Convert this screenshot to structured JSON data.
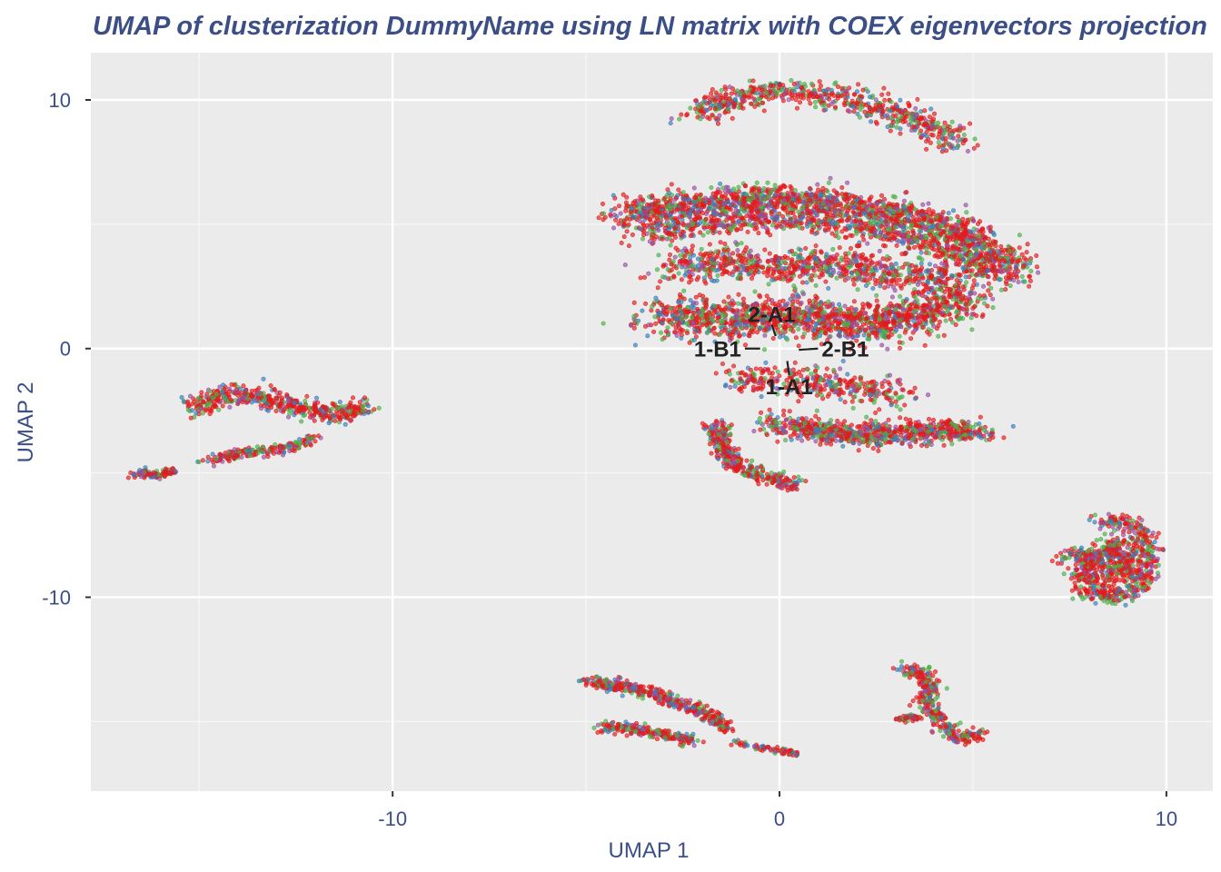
{
  "chart_data": {
    "type": "scatter",
    "title": "UMAP of clusterization DummyName using LN matrix with COEX eigenvectors projection",
    "xlabel": "UMAP 1",
    "ylabel": "UMAP 2",
    "xlim": [
      -17.8,
      11.2
    ],
    "ylim": [
      -17.8,
      11.9
    ],
    "x_ticks": [
      -10,
      0,
      10
    ],
    "y_ticks": [
      10,
      0,
      -10
    ],
    "x_tick_labels": [
      "-10",
      "0",
      "10"
    ],
    "y_tick_labels": [
      "10",
      "0",
      "-10"
    ],
    "grid": true,
    "legend": "none",
    "series_colors": [
      "#e41a1c",
      "#4daf4a",
      "#377eb8",
      "#984ea3"
    ],
    "series_weights": [
      0.55,
      0.2,
      0.13,
      0.12
    ],
    "clusters": [
      {
        "name": "top-arc",
        "points": [
          [
            -2.1,
            9.3
          ],
          [
            -1.5,
            9.9
          ],
          [
            -0.5,
            10.3
          ],
          [
            0.6,
            10.3
          ],
          [
            1.8,
            10.0
          ],
          [
            2.9,
            9.6
          ],
          [
            3.8,
            9.0
          ],
          [
            4.5,
            8.2
          ]
        ],
        "spread": 0.45,
        "count": 650
      },
      {
        "name": "upper-band",
        "points": [
          [
            -4.0,
            5.2
          ],
          [
            -3.0,
            5.6
          ],
          [
            -1.5,
            5.9
          ],
          [
            0.0,
            6.0
          ],
          [
            1.5,
            5.8
          ],
          [
            3.0,
            5.4
          ],
          [
            4.5,
            4.7
          ],
          [
            5.6,
            3.8
          ],
          [
            6.1,
            3.0
          ]
        ],
        "spread": 0.55,
        "count": 1700
      },
      {
        "name": "upper-band-inner",
        "points": [
          [
            -3.5,
            4.6
          ],
          [
            -2.0,
            5.0
          ],
          [
            0.0,
            5.2
          ],
          [
            2.0,
            4.9
          ],
          [
            4.0,
            4.2
          ],
          [
            5.4,
            3.2
          ]
        ],
        "spread": 0.45,
        "count": 700
      },
      {
        "name": "middle-mass",
        "points": [
          [
            -3.0,
            1.2
          ],
          [
            -2.0,
            1.4
          ],
          [
            -1.0,
            1.1
          ],
          [
            0.0,
            1.3
          ],
          [
            1.0,
            1.2
          ],
          [
            2.0,
            1.0
          ],
          [
            3.0,
            1.2
          ],
          [
            4.0,
            1.6
          ],
          [
            4.8,
            2.2
          ]
        ],
        "spread": 0.7,
        "count": 1500
      },
      {
        "name": "middle-upper",
        "points": [
          [
            -2.8,
            3.2
          ],
          [
            -1.5,
            3.5
          ],
          [
            0.0,
            3.3
          ],
          [
            1.5,
            3.4
          ],
          [
            3.0,
            3.0
          ],
          [
            4.5,
            2.8
          ]
        ],
        "spread": 0.6,
        "count": 800
      },
      {
        "name": "middle-lower",
        "points": [
          [
            -1.0,
            -1.2
          ],
          [
            0.5,
            -1.3
          ],
          [
            2.0,
            -1.5
          ],
          [
            3.0,
            -2.0
          ]
        ],
        "spread": 0.55,
        "count": 350
      },
      {
        "name": "lower-band",
        "points": [
          [
            -0.3,
            -3.0
          ],
          [
            1.0,
            -3.3
          ],
          [
            2.5,
            -3.5
          ],
          [
            4.0,
            -3.3
          ],
          [
            5.2,
            -3.3
          ]
        ],
        "spread": 0.4,
        "count": 800
      },
      {
        "name": "lower-hook",
        "points": [
          [
            -1.6,
            -3.0
          ],
          [
            -1.5,
            -4.0
          ],
          [
            -1.0,
            -4.8
          ],
          [
            -0.3,
            -5.2
          ],
          [
            0.5,
            -5.5
          ]
        ],
        "spread": 0.25,
        "count": 350
      },
      {
        "name": "left-blob",
        "points": [
          [
            -15.1,
            -2.4
          ],
          [
            -14.5,
            -1.9
          ],
          [
            -13.5,
            -1.9
          ],
          [
            -12.6,
            -2.3
          ],
          [
            -11.5,
            -2.6
          ],
          [
            -10.7,
            -2.4
          ]
        ],
        "spread": 0.35,
        "count": 500
      },
      {
        "name": "left-lower",
        "points": [
          [
            -14.8,
            -4.6
          ],
          [
            -14.0,
            -4.2
          ],
          [
            -13.0,
            -4.1
          ],
          [
            -12.0,
            -3.6
          ]
        ],
        "spread": 0.2,
        "count": 200
      },
      {
        "name": "left-tail",
        "points": [
          [
            -16.7,
            -5.0
          ],
          [
            -16.0,
            -5.1
          ],
          [
            -15.6,
            -4.9
          ]
        ],
        "spread": 0.15,
        "count": 110
      },
      {
        "name": "right-ring",
        "points": [
          [
            8.3,
            -7.0
          ],
          [
            8.8,
            -6.9
          ],
          [
            9.3,
            -7.5
          ],
          [
            9.5,
            -8.3
          ],
          [
            9.4,
            -9.2
          ],
          [
            9.1,
            -9.8
          ],
          [
            8.5,
            -10.0
          ],
          [
            8.0,
            -9.7
          ],
          [
            8.1,
            -8.8
          ],
          [
            8.4,
            -8.0
          ]
        ],
        "spread": 0.3,
        "count": 550
      },
      {
        "name": "right-ring-inner",
        "points": [
          [
            8.6,
            -7.8
          ],
          [
            8.9,
            -8.5
          ],
          [
            8.7,
            -9.2
          ]
        ],
        "spread": 0.3,
        "count": 200
      },
      {
        "name": "right-tail",
        "points": [
          [
            7.3,
            -8.6
          ],
          [
            7.7,
            -8.1
          ],
          [
            8.1,
            -8.6
          ],
          [
            7.6,
            -9.2
          ]
        ],
        "spread": 0.2,
        "count": 100
      },
      {
        "name": "bottom-left-top",
        "points": [
          [
            -5.0,
            -13.4
          ],
          [
            -4.0,
            -13.6
          ],
          [
            -3.0,
            -14.0
          ],
          [
            -2.0,
            -14.6
          ],
          [
            -1.3,
            -15.3
          ]
        ],
        "spread": 0.2,
        "count": 400
      },
      {
        "name": "bottom-left-lower",
        "points": [
          [
            -4.6,
            -15.2
          ],
          [
            -3.6,
            -15.3
          ],
          [
            -2.8,
            -15.6
          ],
          [
            -2.2,
            -15.8
          ]
        ],
        "spread": 0.2,
        "count": 200
      },
      {
        "name": "bottom-left-tail",
        "points": [
          [
            -1.2,
            -15.8
          ],
          [
            -0.3,
            -16.1
          ],
          [
            0.5,
            -16.3
          ]
        ],
        "spread": 0.1,
        "count": 70
      },
      {
        "name": "bottom-right",
        "points": [
          [
            3.2,
            -13.0
          ],
          [
            3.6,
            -12.9
          ],
          [
            3.9,
            -13.6
          ],
          [
            3.8,
            -14.3
          ],
          [
            4.2,
            -15.1
          ],
          [
            4.7,
            -15.8
          ],
          [
            5.2,
            -15.4
          ]
        ],
        "spread": 0.22,
        "count": 330
      },
      {
        "name": "bottom-right-arm",
        "points": [
          [
            3.1,
            -14.9
          ],
          [
            3.6,
            -14.8
          ]
        ],
        "spread": 0.12,
        "count": 50
      }
    ],
    "annotations": [
      {
        "label": "2-A1",
        "x": -0.2,
        "y": 1.4,
        "line_to": [
          -0.1,
          0.5
        ]
      },
      {
        "label": "1-B1",
        "x": -1.6,
        "y": 0.0,
        "line_to": [
          -0.5,
          0.0
        ]
      },
      {
        "label": "2-B1",
        "x": 1.7,
        "y": 0.0,
        "line_to": [
          0.5,
          -0.05
        ]
      },
      {
        "label": "1-A1",
        "x": 0.25,
        "y": -1.5,
        "line_to": [
          0.2,
          -0.5
        ]
      }
    ]
  }
}
